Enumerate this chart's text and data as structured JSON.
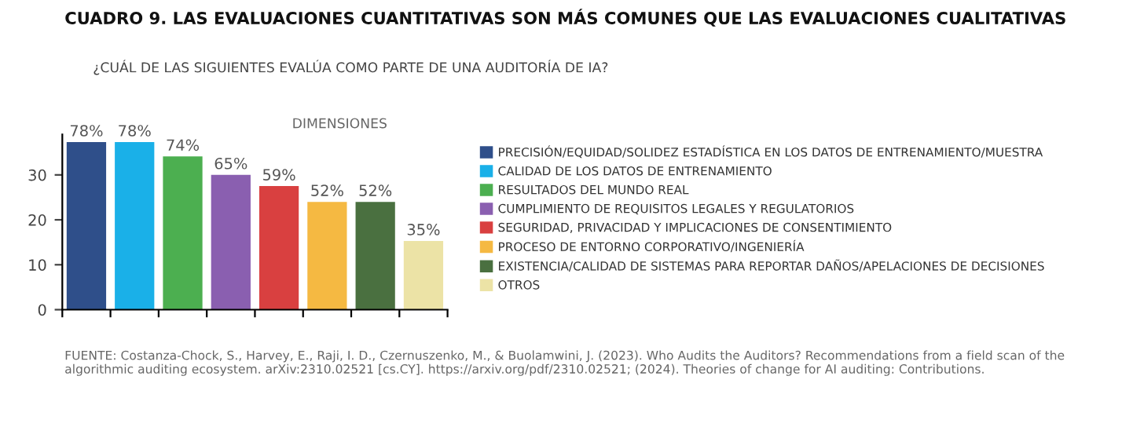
{
  "chart_data": {
    "type": "bar",
    "title": "CUADRO 9. LAS EVALUACIONES CUANTITATIVAS SON MÁS COMUNES QUE LAS EVALUACIONES CUALITATIVAS",
    "subtitle": "¿CUÁL DE LAS SIGUIENTES EVALÚA COMO PARTE DE UNA AUDITORÍA DE IA?",
    "legend_title": "DIMENSIONES",
    "categories": [
      null,
      null,
      null,
      null,
      null,
      null,
      null,
      null
    ],
    "series": [
      {
        "name": "PRECISIÓN/EQUIDAD/SOLIDEZ ESTADÍSTICA EN LOS DATOS DE ENTRENAMIENTO/MUESTRA",
        "color": "#2f4f8a",
        "values": [
          37.3,
          null,
          null,
          null,
          null,
          null,
          null,
          null
        ]
      },
      {
        "name": "CALIDAD DE LOS DATOS DE ENTRENAMIENTO",
        "color": "#1ab0e8",
        "values": [
          null,
          37.3,
          null,
          null,
          null,
          null,
          null,
          null
        ]
      },
      {
        "name": "RESULTADOS DEL MUNDO REAL",
        "color": "#4caf50",
        "values": [
          null,
          null,
          34.1,
          null,
          null,
          null,
          null,
          null
        ]
      },
      {
        "name": "CUMPLIMIENTO DE REQUISITOS LEGALES Y REGULATORIOS",
        "color": "#8a5fb0",
        "values": [
          null,
          null,
          null,
          30,
          null,
          null,
          null,
          null
        ]
      },
      {
        "name": "SEGURIDAD, PRIVACIDAD Y IMPLICACIONES DE CONSENTIMIENTO",
        "color": "#d94040",
        "values": [
          null,
          null,
          null,
          null,
          27.5,
          null,
          null,
          null
        ]
      },
      {
        "name": "PROCESO DE ENTORNO CORPORATIVO/INGENIERÍA",
        "color": "#f5b942",
        "values": [
          null,
          null,
          null,
          null,
          null,
          24,
          null,
          null
        ]
      },
      {
        "name": "EXISTENCIA/CALIDAD DE SISTEMAS PARA REPORTAR DAÑOS/APELACIONES DE DECISIONES",
        "color": "#4a7040",
        "values": [
          null,
          null,
          null,
          null,
          null,
          null,
          24,
          null
        ]
      },
      {
        "name": "OTROS",
        "color": "#ece3a6",
        "values": [
          null,
          null,
          null,
          null,
          null,
          null,
          null,
          15.3
        ]
      }
    ],
    "ylim": [
      0,
      39
    ],
    "yticks": [
      0,
      10,
      20,
      30
    ],
    "grid": false,
    "legend": "right",
    "tick_labels": "y",
    "annotations": [
      "78%",
      "78%",
      "74%",
      "65%",
      "59%",
      "52%",
      "52%",
      "35%",
      "FUENTE: Costanza-Chock, S., Harvey, E., Raji, I. D., Czernuszenko, M., & Buolamwini, J. (2023). Who Audits the Auditors? Recommendations from a field scan of the algorithmic auditing ecosystem. arXiv:2310.02521 [cs.CY]. https://arxiv.org/pdf/2310.02521; (2024). Theories of change for AI auditing: Contributions."
    ]
  }
}
